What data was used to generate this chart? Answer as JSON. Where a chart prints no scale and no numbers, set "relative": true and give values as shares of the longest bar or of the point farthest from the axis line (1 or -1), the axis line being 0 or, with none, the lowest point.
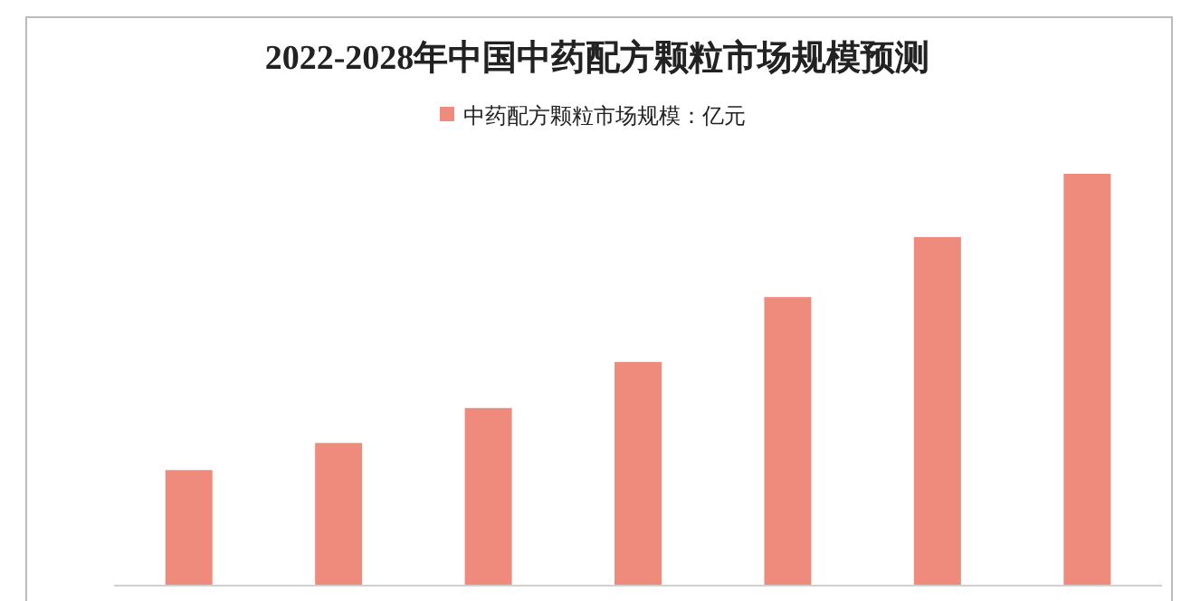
{
  "chart_data": {
    "type": "bar",
    "title": "2022-2028年中国中药配方颗粒市场规模预测",
    "relative": true,
    "legend": "top",
    "categories": [
      null,
      null,
      null,
      null,
      null,
      null,
      null
    ],
    "series": [
      {
        "name": "中药配方颗粒市场规模：亿元",
        "color": "#ee8b7c",
        "values": [
          0.279,
          0.345,
          0.43,
          0.542,
          0.7,
          0.846,
          1
        ]
      }
    ]
  }
}
